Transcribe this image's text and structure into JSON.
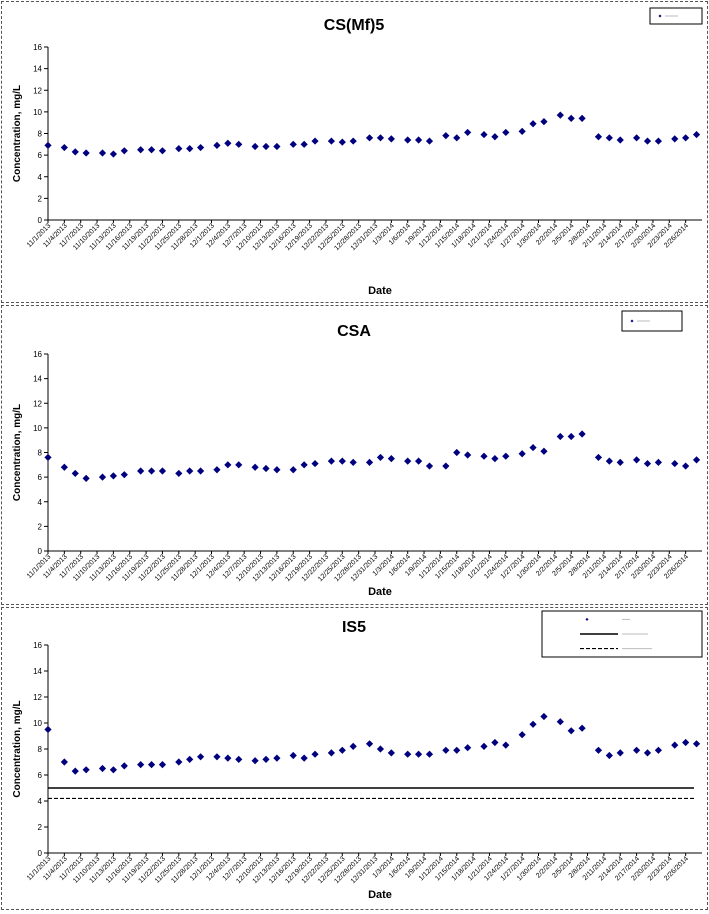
{
  "chart_data": [
    {
      "type": "scatter",
      "title": "CS(Mf)5",
      "xlabel": "Date",
      "ylabel": "Concentration, mg/L",
      "ylim": [
        0,
        16
      ],
      "yticks": [
        "0",
        "2",
        "4",
        "6",
        "8",
        "10",
        "12",
        "14",
        "16"
      ],
      "grid": false,
      "legend_position": "top-right",
      "marker_color": "#00007f",
      "categories": [
        "11/1/2013",
        "11/4/2013",
        "11/7/2013",
        "11/10/2013",
        "11/13/2013",
        "11/16/2013",
        "11/19/2013",
        "11/22/2013",
        "11/25/2013",
        "11/28/2013",
        "12/1/2013",
        "12/4/2013",
        "12/7/2013",
        "12/10/2013",
        "12/13/2013",
        "12/16/2013",
        "12/19/2013",
        "12/22/2013",
        "12/25/2013",
        "12/28/2013",
        "12/31/2013",
        "1/3/2014",
        "1/6/2014",
        "1/9/2014",
        "1/12/2014",
        "1/15/2014",
        "1/18/2014",
        "1/21/2014",
        "1/24/2014",
        "1/27/2014",
        "1/30/2014",
        "2/2/2014",
        "2/5/2014",
        "2/8/2014",
        "2/11/2014",
        "2/14/2014",
        "2/17/2014",
        "2/20/2014",
        "2/23/2014",
        "2/26/2014"
      ],
      "points": [
        {
          "x": "11/1/2013",
          "y": 6.9
        },
        {
          "x": "11/4/2013",
          "y": 6.7
        },
        {
          "x": "11/6/2013",
          "y": 6.3
        },
        {
          "x": "11/8/2013",
          "y": 6.2
        },
        {
          "x": "11/11/2013",
          "y": 6.2
        },
        {
          "x": "11/13/2013",
          "y": 6.1
        },
        {
          "x": "11/15/2013",
          "y": 6.4
        },
        {
          "x": "11/18/2013",
          "y": 6.5
        },
        {
          "x": "11/20/2013",
          "y": 6.5
        },
        {
          "x": "11/22/2013",
          "y": 6.4
        },
        {
          "x": "11/25/2013",
          "y": 6.6
        },
        {
          "x": "11/27/2013",
          "y": 6.6
        },
        {
          "x": "11/29/2013",
          "y": 6.7
        },
        {
          "x": "12/2/2013",
          "y": 6.9
        },
        {
          "x": "12/4/2013",
          "y": 7.1
        },
        {
          "x": "12/6/2013",
          "y": 7.0
        },
        {
          "x": "12/9/2013",
          "y": 6.8
        },
        {
          "x": "12/11/2013",
          "y": 6.8
        },
        {
          "x": "12/13/2013",
          "y": 6.8
        },
        {
          "x": "12/16/2013",
          "y": 7.0
        },
        {
          "x": "12/18/2013",
          "y": 7.0
        },
        {
          "x": "12/20/2013",
          "y": 7.3
        },
        {
          "x": "12/23/2013",
          "y": 7.3
        },
        {
          "x": "12/25/2013",
          "y": 7.2
        },
        {
          "x": "12/27/2013",
          "y": 7.3
        },
        {
          "x": "12/30/2013",
          "y": 7.6
        },
        {
          "x": "1/1/2014",
          "y": 7.6
        },
        {
          "x": "1/3/2014",
          "y": 7.5
        },
        {
          "x": "1/6/2014",
          "y": 7.4
        },
        {
          "x": "1/8/2014",
          "y": 7.4
        },
        {
          "x": "1/10/2014",
          "y": 7.3
        },
        {
          "x": "1/13/2014",
          "y": 7.8
        },
        {
          "x": "1/15/2014",
          "y": 7.6
        },
        {
          "x": "1/17/2014",
          "y": 8.1
        },
        {
          "x": "1/20/2014",
          "y": 7.9
        },
        {
          "x": "1/22/2014",
          "y": 7.7
        },
        {
          "x": "1/24/2014",
          "y": 8.1
        },
        {
          "x": "1/27/2014",
          "y": 8.2
        },
        {
          "x": "1/29/2014",
          "y": 8.9
        },
        {
          "x": "1/31/2014",
          "y": 9.1
        },
        {
          "x": "2/3/2014",
          "y": 9.7
        },
        {
          "x": "2/5/2014",
          "y": 9.4
        },
        {
          "x": "2/7/2014",
          "y": 9.4
        },
        {
          "x": "2/10/2014",
          "y": 7.7
        },
        {
          "x": "2/12/2014",
          "y": 7.6
        },
        {
          "x": "2/14/2014",
          "y": 7.4
        },
        {
          "x": "2/17/2014",
          "y": 7.6
        },
        {
          "x": "2/19/2014",
          "y": 7.3
        },
        {
          "x": "2/21/2014",
          "y": 7.3
        },
        {
          "x": "2/24/2014",
          "y": 7.5
        },
        {
          "x": "2/26/2014",
          "y": 7.6
        },
        {
          "x": "2/28/2014",
          "y": 7.9
        }
      ]
    },
    {
      "type": "scatter",
      "title": "CSA",
      "xlabel": "Date",
      "ylabel": "Concentration, mg/L",
      "ylim": [
        0,
        16
      ],
      "yticks": [
        "0",
        "2",
        "4",
        "6",
        "8",
        "10",
        "12",
        "14",
        "16"
      ],
      "grid": false,
      "legend_position": "top-right",
      "marker_color": "#00007f",
      "categories": [
        "11/1/2013",
        "11/4/2013",
        "11/7/2013",
        "11/10/2013",
        "11/13/2013",
        "11/16/2013",
        "11/19/2013",
        "11/22/2013",
        "11/25/2013",
        "11/28/2013",
        "12/1/2013",
        "12/4/2013",
        "12/7/2013",
        "12/10/2013",
        "12/13/2013",
        "12/16/2013",
        "12/19/2013",
        "12/22/2013",
        "12/25/2013",
        "12/28/2013",
        "12/31/2013",
        "1/3/2014",
        "1/6/2014",
        "1/9/2014",
        "1/12/2014",
        "1/15/2014",
        "1/18/2014",
        "1/21/2014",
        "1/24/2014",
        "1/27/2014",
        "1/30/2014",
        "2/2/2014",
        "2/5/2014",
        "2/8/2014",
        "2/11/2014",
        "2/14/2014",
        "2/17/2014",
        "2/20/2014",
        "2/23/2014",
        "2/26/2014"
      ],
      "points": [
        {
          "x": "11/1/2013",
          "y": 7.6
        },
        {
          "x": "11/4/2013",
          "y": 6.8
        },
        {
          "x": "11/6/2013",
          "y": 6.3
        },
        {
          "x": "11/8/2013",
          "y": 5.9
        },
        {
          "x": "11/11/2013",
          "y": 6.0
        },
        {
          "x": "11/13/2013",
          "y": 6.1
        },
        {
          "x": "11/15/2013",
          "y": 6.2
        },
        {
          "x": "11/18/2013",
          "y": 6.5
        },
        {
          "x": "11/20/2013",
          "y": 6.5
        },
        {
          "x": "11/22/2013",
          "y": 6.5
        },
        {
          "x": "11/25/2013",
          "y": 6.3
        },
        {
          "x": "11/27/2013",
          "y": 6.5
        },
        {
          "x": "11/29/2013",
          "y": 6.5
        },
        {
          "x": "12/2/2013",
          "y": 6.6
        },
        {
          "x": "12/4/2013",
          "y": 7.0
        },
        {
          "x": "12/6/2013",
          "y": 7.0
        },
        {
          "x": "12/9/2013",
          "y": 6.8
        },
        {
          "x": "12/11/2013",
          "y": 6.7
        },
        {
          "x": "12/13/2013",
          "y": 6.6
        },
        {
          "x": "12/16/2013",
          "y": 6.6
        },
        {
          "x": "12/18/2013",
          "y": 7.0
        },
        {
          "x": "12/20/2013",
          "y": 7.1
        },
        {
          "x": "12/23/2013",
          "y": 7.3
        },
        {
          "x": "12/25/2013",
          "y": 7.3
        },
        {
          "x": "12/27/2013",
          "y": 7.2
        },
        {
          "x": "12/30/2013",
          "y": 7.2
        },
        {
          "x": "1/1/2014",
          "y": 7.6
        },
        {
          "x": "1/3/2014",
          "y": 7.5
        },
        {
          "x": "1/6/2014",
          "y": 7.3
        },
        {
          "x": "1/8/2014",
          "y": 7.3
        },
        {
          "x": "1/10/2014",
          "y": 6.9
        },
        {
          "x": "1/13/2014",
          "y": 6.9
        },
        {
          "x": "1/15/2014",
          "y": 8.0
        },
        {
          "x": "1/17/2014",
          "y": 7.8
        },
        {
          "x": "1/20/2014",
          "y": 7.7
        },
        {
          "x": "1/22/2014",
          "y": 7.5
        },
        {
          "x": "1/24/2014",
          "y": 7.7
        },
        {
          "x": "1/27/2014",
          "y": 7.9
        },
        {
          "x": "1/29/2014",
          "y": 8.4
        },
        {
          "x": "1/31/2014",
          "y": 8.1
        },
        {
          "x": "2/3/2014",
          "y": 9.3
        },
        {
          "x": "2/5/2014",
          "y": 9.3
        },
        {
          "x": "2/7/2014",
          "y": 9.5
        },
        {
          "x": "2/10/2014",
          "y": 7.6
        },
        {
          "x": "2/12/2014",
          "y": 7.3
        },
        {
          "x": "2/14/2014",
          "y": 7.2
        },
        {
          "x": "2/17/2014",
          "y": 7.4
        },
        {
          "x": "2/19/2014",
          "y": 7.1
        },
        {
          "x": "2/21/2014",
          "y": 7.2
        },
        {
          "x": "2/24/2014",
          "y": 7.1
        },
        {
          "x": "2/26/2014",
          "y": 6.9
        },
        {
          "x": "2/28/2014",
          "y": 7.4
        }
      ]
    },
    {
      "type": "scatter",
      "title": "IS5",
      "xlabel": "Date",
      "ylabel": "Concentration, mg/L",
      "ylim": [
        0,
        16
      ],
      "yticks": [
        "0",
        "2",
        "4",
        "6",
        "8",
        "10",
        "12",
        "14",
        "16"
      ],
      "grid": false,
      "legend_position": "top-right",
      "marker_color": "#00007f",
      "reference_lines": [
        {
          "style": "solid",
          "y": 5.0
        },
        {
          "style": "dashed",
          "y": 4.2
        }
      ],
      "categories": [
        "11/1/2013",
        "11/4/2013",
        "11/7/2013",
        "11/10/2013",
        "11/13/2013",
        "11/16/2013",
        "11/19/2013",
        "11/22/2013",
        "11/25/2013",
        "11/28/2013",
        "12/1/2013",
        "12/4/2013",
        "12/7/2013",
        "12/10/2013",
        "12/13/2013",
        "12/16/2013",
        "12/19/2013",
        "12/22/2013",
        "12/25/2013",
        "12/28/2013",
        "12/31/2013",
        "1/3/2014",
        "1/6/2014",
        "1/9/2014",
        "1/12/2014",
        "1/15/2014",
        "1/18/2014",
        "1/21/2014",
        "1/24/2014",
        "1/27/2014",
        "1/30/2014",
        "2/2/2014",
        "2/5/2014",
        "2/8/2014",
        "2/11/2014",
        "2/14/2014",
        "2/17/2014",
        "2/20/2014",
        "2/23/2014",
        "2/26/2014"
      ],
      "points": [
        {
          "x": "11/1/2013",
          "y": 9.5
        },
        {
          "x": "11/4/2013",
          "y": 7.0
        },
        {
          "x": "11/6/2013",
          "y": 6.3
        },
        {
          "x": "11/8/2013",
          "y": 6.4
        },
        {
          "x": "11/11/2013",
          "y": 6.5
        },
        {
          "x": "11/13/2013",
          "y": 6.4
        },
        {
          "x": "11/15/2013",
          "y": 6.7
        },
        {
          "x": "11/18/2013",
          "y": 6.8
        },
        {
          "x": "11/20/2013",
          "y": 6.8
        },
        {
          "x": "11/22/2013",
          "y": 6.8
        },
        {
          "x": "11/25/2013",
          "y": 7.0
        },
        {
          "x": "11/27/2013",
          "y": 7.2
        },
        {
          "x": "11/29/2013",
          "y": 7.4
        },
        {
          "x": "12/2/2013",
          "y": 7.4
        },
        {
          "x": "12/4/2013",
          "y": 7.3
        },
        {
          "x": "12/6/2013",
          "y": 7.2
        },
        {
          "x": "12/9/2013",
          "y": 7.1
        },
        {
          "x": "12/11/2013",
          "y": 7.2
        },
        {
          "x": "12/13/2013",
          "y": 7.3
        },
        {
          "x": "12/16/2013",
          "y": 7.5
        },
        {
          "x": "12/18/2013",
          "y": 7.3
        },
        {
          "x": "12/20/2013",
          "y": 7.6
        },
        {
          "x": "12/23/2013",
          "y": 7.7
        },
        {
          "x": "12/25/2013",
          "y": 7.9
        },
        {
          "x": "12/27/2013",
          "y": 8.2
        },
        {
          "x": "12/30/2013",
          "y": 8.4
        },
        {
          "x": "1/1/2014",
          "y": 8.0
        },
        {
          "x": "1/3/2014",
          "y": 7.7
        },
        {
          "x": "1/6/2014",
          "y": 7.6
        },
        {
          "x": "1/8/2014",
          "y": 7.6
        },
        {
          "x": "1/10/2014",
          "y": 7.6
        },
        {
          "x": "1/13/2014",
          "y": 7.9
        },
        {
          "x": "1/15/2014",
          "y": 7.9
        },
        {
          "x": "1/17/2014",
          "y": 8.1
        },
        {
          "x": "1/20/2014",
          "y": 8.2
        },
        {
          "x": "1/22/2014",
          "y": 8.5
        },
        {
          "x": "1/24/2014",
          "y": 8.3
        },
        {
          "x": "1/27/2014",
          "y": 9.1
        },
        {
          "x": "1/29/2014",
          "y": 9.9
        },
        {
          "x": "1/31/2014",
          "y": 10.5
        },
        {
          "x": "2/3/2014",
          "y": 10.1
        },
        {
          "x": "2/5/2014",
          "y": 9.4
        },
        {
          "x": "2/7/2014",
          "y": 9.6
        },
        {
          "x": "2/10/2014",
          "y": 7.9
        },
        {
          "x": "2/12/2014",
          "y": 7.5
        },
        {
          "x": "2/14/2014",
          "y": 7.7
        },
        {
          "x": "2/17/2014",
          "y": 7.9
        },
        {
          "x": "2/19/2014",
          "y": 7.7
        },
        {
          "x": "2/21/2014",
          "y": 7.9
        },
        {
          "x": "2/24/2014",
          "y": 8.3
        },
        {
          "x": "2/26/2014",
          "y": 8.5
        },
        {
          "x": "2/28/2014",
          "y": 8.4
        }
      ]
    }
  ]
}
